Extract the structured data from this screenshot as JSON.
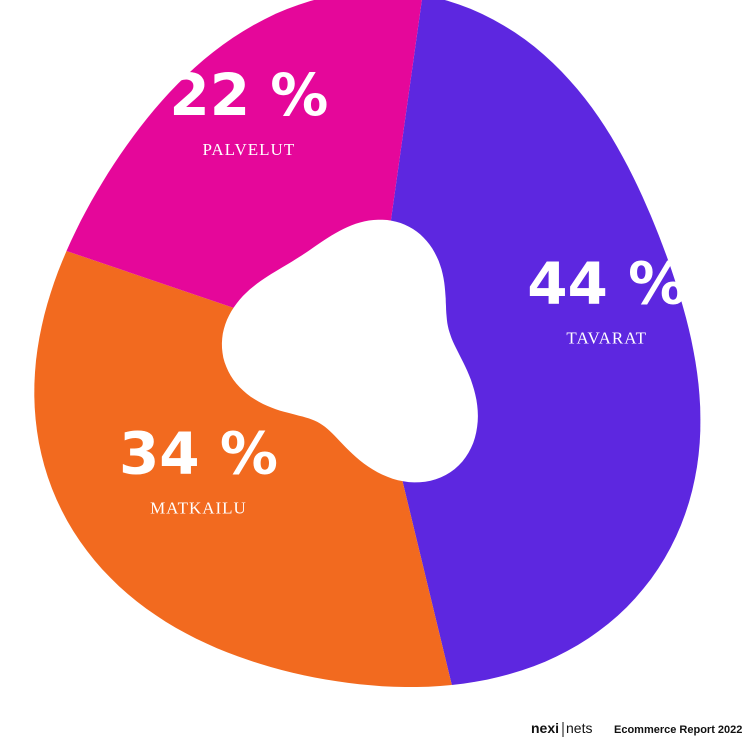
{
  "chart_data": {
    "type": "pie",
    "categories": [
      "TAVARAT",
      "MATKAILU",
      "PALVELUT"
    ],
    "values": [
      44,
      34,
      22
    ],
    "value_labels": [
      "44 %",
      "34 %",
      "22 %"
    ],
    "colors": [
      "#5d27e0",
      "#f26a1f",
      "#e5079a"
    ],
    "logo": [
      "nexi",
      "nets"
    ],
    "credit": "Ecommerce Report 2022"
  }
}
